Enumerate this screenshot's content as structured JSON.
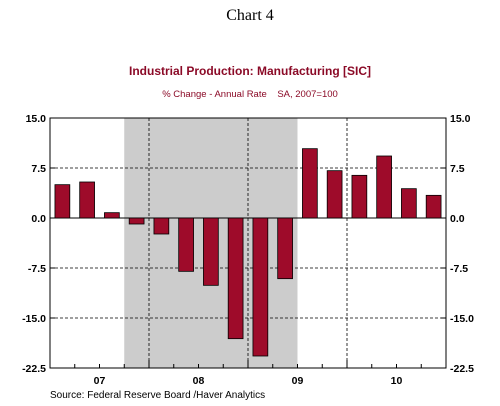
{
  "page_header": "Chart 4",
  "source_note": "Source:  Federal Reserve Board /Haver Analytics",
  "chart_data": {
    "type": "bar",
    "title": "Industrial Production: Manufacturing [SIC]",
    "subtitle": "% Change - Annual Rate    SA, 2007=100",
    "periods": [
      "07Q1",
      "07Q2",
      "07Q3",
      "07Q4",
      "08Q1",
      "08Q2",
      "08Q3",
      "08Q4",
      "09Q1",
      "09Q2",
      "09Q3",
      "09Q4",
      "10Q1",
      "10Q2",
      "10Q3",
      "10Q4"
    ],
    "values": [
      5.0,
      5.4,
      0.8,
      -0.9,
      -2.4,
      -8.0,
      -10.1,
      -18.1,
      -20.7,
      -9.1,
      10.4,
      7.1,
      6.4,
      9.3,
      4.4,
      3.4
    ],
    "x_tick_labels": [
      "07",
      "08",
      "09",
      "10"
    ],
    "y_tick_labels": [
      "15.0",
      "7.5",
      "0.0",
      "-7.5",
      "-15.0",
      "-22.5"
    ],
    "y_ticks": [
      15.0,
      7.5,
      0.0,
      -7.5,
      -15.0,
      -22.5
    ],
    "ylim": [
      -22.5,
      15.0
    ],
    "recession_shading": {
      "start_period": "07Q4",
      "end_period": "09Q2"
    },
    "grid": true,
    "colors": {
      "bar": "#9e0b2a",
      "bar_edge": "#000000",
      "title": "#8b0a27",
      "shading": "#cccccc"
    }
  }
}
